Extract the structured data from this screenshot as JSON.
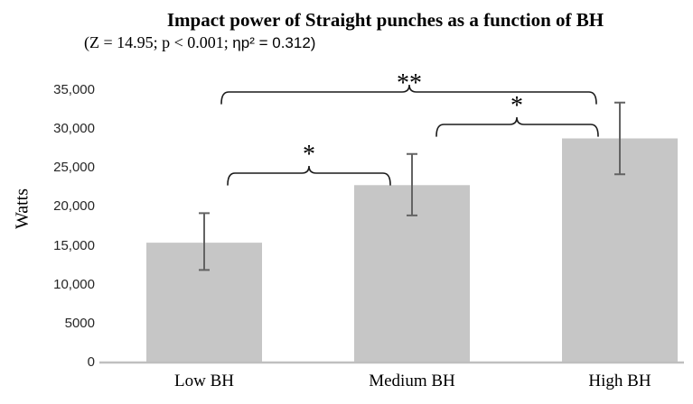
{
  "chart_data": {
    "type": "bar",
    "title": "Impact power of Straight punches as a function of BH",
    "subtitle": "(Z = 14.95; p < 0.001; ηp² = 0.312)",
    "subtitle_parts": {
      "serif": "(Z = 14.95; p < 0.001; ",
      "sans": "ηp² = 0.312)"
    },
    "xlabel": "",
    "ylabel": "Watts",
    "categories": [
      "Low BH",
      "Medium BH",
      "High BH"
    ],
    "values": [
      15400,
      22800,
      28800
    ],
    "error_low": [
      11900,
      18900,
      24200
    ],
    "error_high": [
      19200,
      26800,
      33400
    ],
    "ylim": [
      0,
      35000
    ],
    "yticks": [
      {
        "value": 0,
        "label": "0"
      },
      {
        "value": 5000,
        "label": "5000"
      },
      {
        "value": 10000,
        "label": "10,000"
      },
      {
        "value": 15000,
        "label": "15,000"
      },
      {
        "value": 20000,
        "label": "20,000"
      },
      {
        "value": 25000,
        "label": "25,000"
      },
      {
        "value": 30000,
        "label": "30,000"
      },
      {
        "value": 35000,
        "label": "35,000"
      }
    ],
    "grid": false,
    "legend": false,
    "colors": {
      "bar_fill": "#c6c6c6",
      "error_bar": "#636363",
      "axis_line": "#bfbfbf",
      "bracket": "#1a1a1a",
      "text": "#000000"
    },
    "significance": [
      {
        "between": [
          "Low BH",
          "Medium BH"
        ],
        "label": "*"
      },
      {
        "between": [
          "Medium BH",
          "High BH"
        ],
        "label": "*"
      },
      {
        "between": [
          "Low BH",
          "High BH"
        ],
        "label": "**"
      }
    ]
  }
}
